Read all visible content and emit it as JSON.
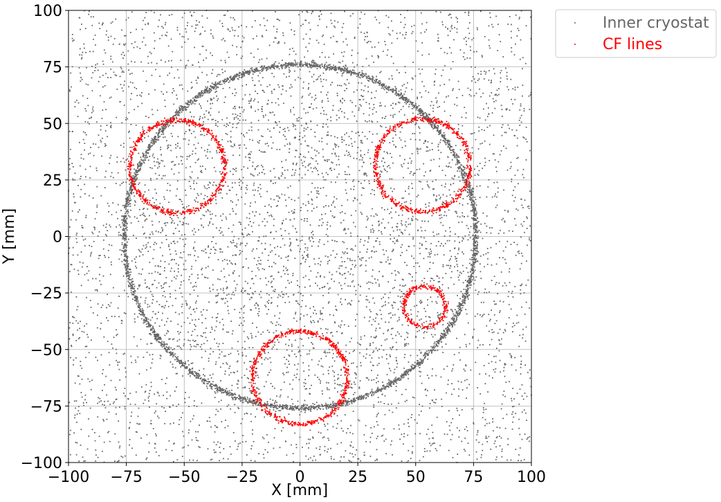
{
  "chart_data": {
    "type": "scatter",
    "title": "",
    "xlabel": "X [mm]",
    "ylabel": "Y [mm]",
    "xlim": [
      -100,
      100
    ],
    "ylim": [
      -100,
      100
    ],
    "xticks": [
      -100,
      -75,
      -50,
      -25,
      0,
      25,
      50,
      75,
      100
    ],
    "yticks": [
      -100,
      -75,
      -50,
      -25,
      0,
      25,
      50,
      75,
      100
    ],
    "xtick_labels": [
      "−100",
      "−75",
      "−50",
      "−25",
      "0",
      "25",
      "50",
      "75",
      "100"
    ],
    "ytick_labels": [
      "−100",
      "−75",
      "−50",
      "−25",
      "0",
      "25",
      "50",
      "75",
      "100"
    ],
    "grid": true,
    "legend_position": "outside-top-right",
    "series": [
      {
        "name": "Inner cryostat",
        "color": "#666666",
        "components": [
          {
            "kind": "ring",
            "center": [
              0,
              0
            ],
            "radius": 76,
            "density": "high"
          },
          {
            "kind": "uniform-background",
            "x_range": [
              -100,
              100
            ],
            "y_range": [
              -100,
              100
            ],
            "density": "sparse"
          }
        ]
      },
      {
        "name": "CF lines",
        "color": "#ff0000",
        "components": [
          {
            "kind": "ring",
            "center": [
              -53,
              31
            ],
            "radius": 20.5
          },
          {
            "kind": "ring",
            "center": [
              53,
              31.5
            ],
            "radius": 20.5
          },
          {
            "kind": "ring",
            "center": [
              54,
              -31
            ],
            "radius": 9
          },
          {
            "kind": "ring",
            "center": [
              0,
              -62.5
            ],
            "radius": 20.5
          }
        ]
      }
    ]
  }
}
